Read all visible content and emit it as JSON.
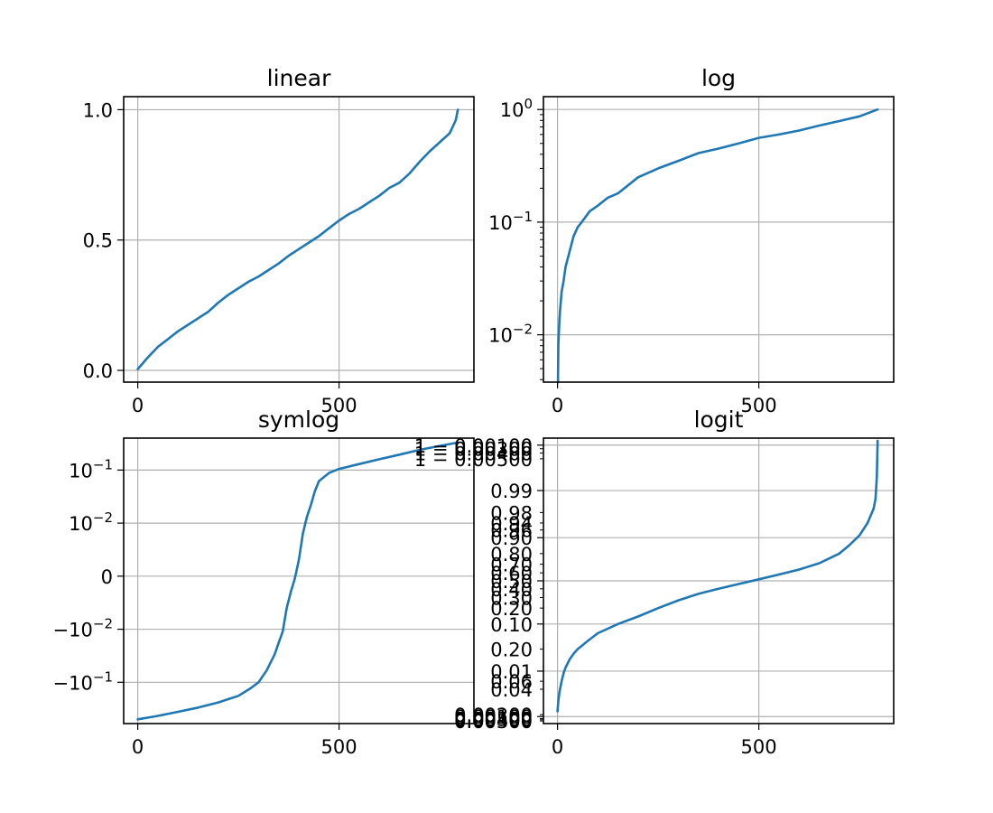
{
  "figure": {
    "line_color": "#1f77b4",
    "grid_color": "#b0b0b0"
  },
  "chart_data": [
    {
      "type": "line",
      "title": "linear",
      "yscale": "linear",
      "xlim": [
        -35,
        835
      ],
      "ylim": [
        -0.045,
        1.05
      ],
      "grid": true,
      "x_ticks": [
        {
          "value": 0,
          "label": "0"
        },
        {
          "value": 500,
          "label": "500"
        }
      ],
      "y_ticks": [
        {
          "value": 0.0,
          "label": "0.0"
        },
        {
          "value": 0.5,
          "label": "0.5"
        },
        {
          "value": 1.0,
          "label": "1.0"
        }
      ],
      "series": [
        {
          "x": [
            0,
            25,
            50,
            75,
            100,
            125,
            150,
            175,
            200,
            225,
            250,
            275,
            300,
            325,
            350,
            375,
            400,
            425,
            450,
            475,
            500,
            525,
            550,
            575,
            600,
            625,
            650,
            675,
            700,
            725,
            750,
            775,
            790,
            795
          ],
          "y": [
            0.005,
            0.05,
            0.09,
            0.12,
            0.15,
            0.175,
            0.2,
            0.225,
            0.26,
            0.29,
            0.315,
            0.34,
            0.36,
            0.385,
            0.41,
            0.44,
            0.465,
            0.49,
            0.515,
            0.545,
            0.575,
            0.6,
            0.62,
            0.645,
            0.67,
            0.7,
            0.72,
            0.755,
            0.8,
            0.84,
            0.875,
            0.91,
            0.96,
            1.0
          ]
        }
      ]
    },
    {
      "type": "line",
      "title": "log",
      "yscale": "log",
      "xlim": [
        -35,
        835
      ],
      "ylim": [
        0.0038,
        1.3
      ],
      "grid": true,
      "x_ticks": [
        {
          "value": 0,
          "label": "0"
        },
        {
          "value": 500,
          "label": "500"
        }
      ],
      "y_ticks": [
        {
          "value": 0.01,
          "label": "10",
          "exp": "−2"
        },
        {
          "value": 0.1,
          "label": "10",
          "exp": "−1"
        },
        {
          "value": 1,
          "label": "10",
          "exp": "0"
        }
      ],
      "series": [
        {
          "x": [
            1,
            2,
            4,
            6,
            10,
            15,
            20,
            30,
            40,
            50,
            60,
            80,
            100,
            125,
            150,
            200,
            250,
            300,
            350,
            400,
            450,
            500,
            550,
            600,
            650,
            700,
            750,
            795
          ],
          "y": [
            0.0038,
            0.008,
            0.012,
            0.016,
            0.024,
            0.03,
            0.04,
            0.055,
            0.075,
            0.09,
            0.1,
            0.125,
            0.14,
            0.165,
            0.18,
            0.25,
            0.3,
            0.35,
            0.41,
            0.45,
            0.5,
            0.56,
            0.6,
            0.65,
            0.72,
            0.79,
            0.87,
            1.0
          ]
        }
      ]
    },
    {
      "type": "line",
      "title": "symlog",
      "yscale": "symlog",
      "linthresh": 0.01,
      "xlim": [
        -35,
        835
      ],
      "ylim": [
        -0.6,
        0.4
      ],
      "grid": true,
      "x_ticks": [
        {
          "value": 0,
          "label": "0"
        },
        {
          "value": 500,
          "label": "500"
        }
      ],
      "y_ticks": [
        {
          "value": -0.1,
          "label": "−10",
          "exp": "−1"
        },
        {
          "value": -0.01,
          "label": "−10",
          "exp": "−2"
        },
        {
          "value": 0,
          "label": "0"
        },
        {
          "value": 0.01,
          "label": "10",
          "exp": "−2"
        },
        {
          "value": 0.1,
          "label": "10",
          "exp": "−1"
        }
      ],
      "series": [
        {
          "x": [
            0,
            50,
            100,
            150,
            200,
            250,
            280,
            300,
            320,
            340,
            350,
            360,
            370,
            380,
            390,
            400,
            410,
            420,
            430,
            440,
            450,
            475,
            500,
            550,
            600,
            650,
            700,
            750,
            795
          ],
          "y": [
            -0.5,
            -0.43,
            -0.36,
            -0.3,
            -0.24,
            -0.18,
            -0.13,
            -0.1,
            -0.06,
            -0.03,
            -0.018,
            -0.011,
            -0.006,
            -0.003,
            -0.0005,
            0.003,
            0.008,
            0.013,
            0.022,
            0.04,
            0.062,
            0.088,
            0.105,
            0.13,
            0.16,
            0.195,
            0.24,
            0.285,
            0.33
          ]
        }
      ]
    },
    {
      "type": "line",
      "title": "logit",
      "yscale": "logit",
      "xlim": [
        -35,
        835
      ],
      "ylim": [
        0.0007,
        0.9993
      ],
      "grid": true,
      "x_ticks": [
        {
          "value": 0,
          "label": "0"
        },
        {
          "value": 500,
          "label": "500"
        }
      ],
      "y_ticks": [
        {
          "value": 0.001,
          "label": "0.00100"
        },
        {
          "value": 0.01,
          "label": "0.01"
        },
        {
          "value": 0.1,
          "label": "0.10"
        },
        {
          "value": 0.5,
          "label": "0.50"
        },
        {
          "value": 0.9,
          "label": "0.90"
        },
        {
          "value": 0.99,
          "label": "0.99"
        },
        {
          "value": 0.999,
          "label": "1 − 0.00100"
        }
      ],
      "y_minor_labels": [
        {
          "value": 0.0008,
          "label": "0.00300"
        },
        {
          "value": 0.00085,
          "label": "0.00400"
        },
        {
          "value": 0.0009,
          "label": "0.00500"
        },
        {
          "value": 0.0011,
          "label": "0.00200"
        },
        {
          "value": 0.004,
          "label": "0.04"
        },
        {
          "value": 0.006,
          "label": "0.06"
        },
        {
          "value": 0.03,
          "label": "0.20"
        },
        {
          "value": 0.2,
          "label": "0.20"
        },
        {
          "value": 0.3,
          "label": "0.30"
        },
        {
          "value": 0.4,
          "label": "0.40"
        },
        {
          "value": 0.6,
          "label": "0.60"
        },
        {
          "value": 0.7,
          "label": "0.70"
        },
        {
          "value": 0.8,
          "label": "0.80"
        },
        {
          "value": 0.93,
          "label": "0.96"
        },
        {
          "value": 0.95,
          "label": "0.94"
        },
        {
          "value": 0.97,
          "label": "0.98"
        },
        {
          "value": 0.998,
          "label": "1 − 0.00500"
        },
        {
          "value": 0.9985,
          "label": "1 − 0.00400"
        },
        {
          "value": 0.9988,
          "label": "1 − 0.00300"
        }
      ],
      "series": [
        {
          "x": [
            0,
            2,
            5,
            10,
            15,
            20,
            30,
            40,
            50,
            75,
            100,
            150,
            200,
            250,
            300,
            350,
            400,
            450,
            500,
            550,
            600,
            650,
            700,
            725,
            750,
            770,
            785,
            790,
            793,
            795
          ],
          "y": [
            0.0013,
            0.0022,
            0.0035,
            0.006,
            0.009,
            0.012,
            0.018,
            0.024,
            0.03,
            0.045,
            0.065,
            0.1,
            0.14,
            0.2,
            0.27,
            0.34,
            0.4,
            0.46,
            0.52,
            0.58,
            0.64,
            0.71,
            0.8,
            0.86,
            0.91,
            0.95,
            0.975,
            0.985,
            0.995,
            0.9992
          ]
        }
      ]
    }
  ]
}
